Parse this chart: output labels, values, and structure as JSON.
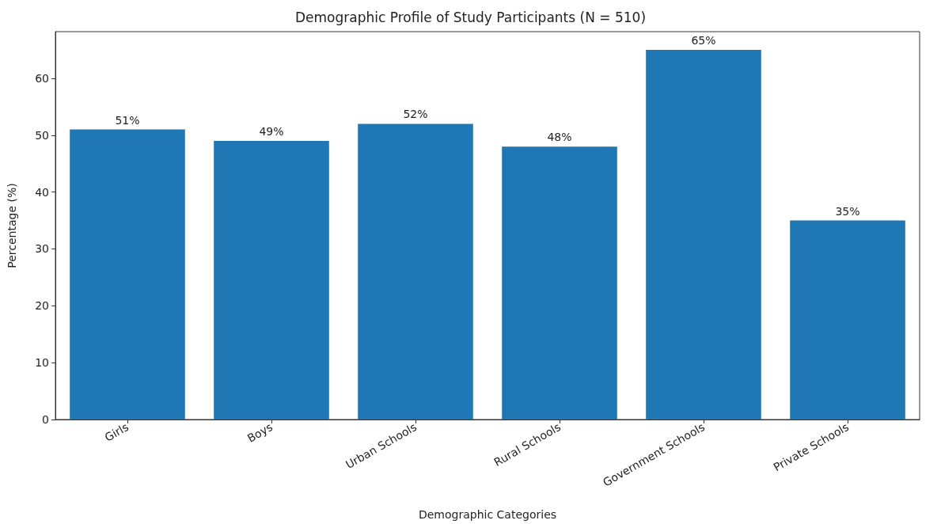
{
  "chart_data": {
    "type": "bar",
    "title": "Demographic Profile of Study Participants (N = 510)",
    "xlabel": "Demographic Categories",
    "ylabel": "Percentage (%)",
    "categories": [
      "Girls",
      "Boys",
      "Urban Schools",
      "Rural Schools",
      "Government Schools",
      "Private Schools"
    ],
    "values": [
      51,
      49,
      52,
      48,
      65,
      35
    ],
    "value_labels": [
      "51%",
      "49%",
      "52%",
      "48%",
      "65%",
      "35%"
    ],
    "color": "#1f77b4",
    "ylim": [
      0,
      68.2
    ],
    "yticks": [
      0,
      10,
      20,
      30,
      40,
      50,
      60
    ]
  }
}
